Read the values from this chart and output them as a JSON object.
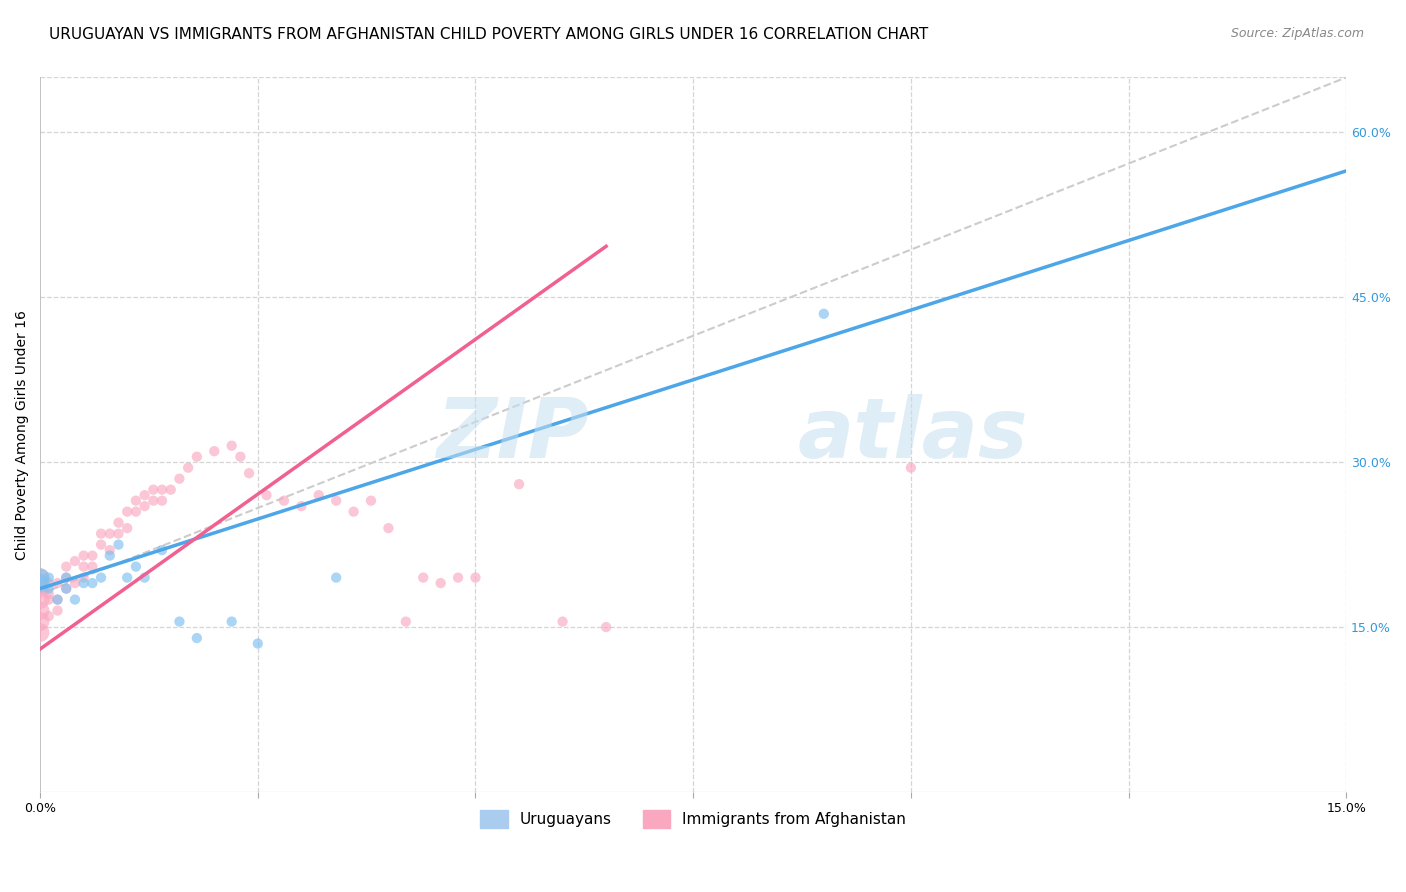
{
  "title": "URUGUAYAN VS IMMIGRANTS FROM AFGHANISTAN CHILD POVERTY AMONG GIRLS UNDER 16 CORRELATION CHART",
  "source": "Source: ZipAtlas.com",
  "ylabel": "Child Poverty Among Girls Under 16",
  "xlim": [
    0.0,
    0.15
  ],
  "ylim": [
    0.0,
    0.65
  ],
  "yticks_right": [
    0.15,
    0.3,
    0.45,
    0.6
  ],
  "yticklabels_right": [
    "15.0%",
    "30.0%",
    "45.0%",
    "60.0%"
  ],
  "blue_scatter_color": "#7fbfef",
  "pink_scatter_color": "#f9a8c0",
  "blue_line_color": "#4da6e8",
  "pink_line_color": "#f06090",
  "diagonal_color": "#cccccc",
  "watermark": "ZIPatlas",
  "legend_blue_color": "#aaccee",
  "legend_pink_color": "#f9a8c0",
  "uruguayan_label": "Uruguayans",
  "afghanistan_label": "Immigrants from Afghanistan",
  "blue_line_x0": 0.0,
  "blue_line_y0": 0.185,
  "blue_line_x1": 0.15,
  "blue_line_y1": 0.565,
  "pink_line_x0": 0.0,
  "pink_line_y0": 0.13,
  "pink_line_x1": 0.055,
  "pink_line_y1": 0.44,
  "uruguayan_x": [
    0.0,
    0.0,
    0.001,
    0.001,
    0.002,
    0.003,
    0.003,
    0.004,
    0.005,
    0.006,
    0.007,
    0.008,
    0.009,
    0.01,
    0.011,
    0.012,
    0.014,
    0.016,
    0.018,
    0.022,
    0.025,
    0.034,
    0.09
  ],
  "uruguayan_y": [
    0.195,
    0.19,
    0.195,
    0.185,
    0.175,
    0.195,
    0.185,
    0.175,
    0.19,
    0.19,
    0.195,
    0.215,
    0.225,
    0.195,
    0.205,
    0.195,
    0.22,
    0.155,
    0.14,
    0.155,
    0.135,
    0.195,
    0.435
  ],
  "afghanistan_x": [
    0.0,
    0.0,
    0.0,
    0.0,
    0.0,
    0.0,
    0.001,
    0.001,
    0.001,
    0.001,
    0.002,
    0.002,
    0.002,
    0.003,
    0.003,
    0.003,
    0.004,
    0.004,
    0.005,
    0.005,
    0.005,
    0.006,
    0.006,
    0.007,
    0.007,
    0.008,
    0.008,
    0.009,
    0.009,
    0.01,
    0.01,
    0.011,
    0.011,
    0.012,
    0.012,
    0.013,
    0.013,
    0.014,
    0.014,
    0.015,
    0.016,
    0.017,
    0.018,
    0.02,
    0.022,
    0.023,
    0.024,
    0.026,
    0.028,
    0.03,
    0.032,
    0.034,
    0.036,
    0.038,
    0.04,
    0.042,
    0.044,
    0.046,
    0.048,
    0.05,
    0.055,
    0.06,
    0.065,
    0.1
  ],
  "afghanistan_y": [
    0.195,
    0.185,
    0.175,
    0.165,
    0.155,
    0.145,
    0.19,
    0.18,
    0.175,
    0.16,
    0.19,
    0.175,
    0.165,
    0.205,
    0.195,
    0.185,
    0.21,
    0.19,
    0.215,
    0.205,
    0.195,
    0.215,
    0.205,
    0.235,
    0.225,
    0.235,
    0.22,
    0.245,
    0.235,
    0.255,
    0.24,
    0.265,
    0.255,
    0.27,
    0.26,
    0.275,
    0.265,
    0.275,
    0.265,
    0.275,
    0.285,
    0.295,
    0.305,
    0.31,
    0.315,
    0.305,
    0.29,
    0.27,
    0.265,
    0.26,
    0.27,
    0.265,
    0.255,
    0.265,
    0.24,
    0.155,
    0.195,
    0.19,
    0.195,
    0.195,
    0.28,
    0.155,
    0.15,
    0.295
  ],
  "title_fontsize": 11,
  "source_fontsize": 9,
  "axis_label_fontsize": 10,
  "tick_fontsize": 9,
  "legend_fontsize": 11,
  "watermark_fontsize": 60,
  "watermark_alpha": 0.1,
  "scatter_size_small": 55,
  "scatter_size_large": 180,
  "scatter_alpha": 0.65,
  "grid_color": "#d5d5d5",
  "background_color": "#ffffff"
}
